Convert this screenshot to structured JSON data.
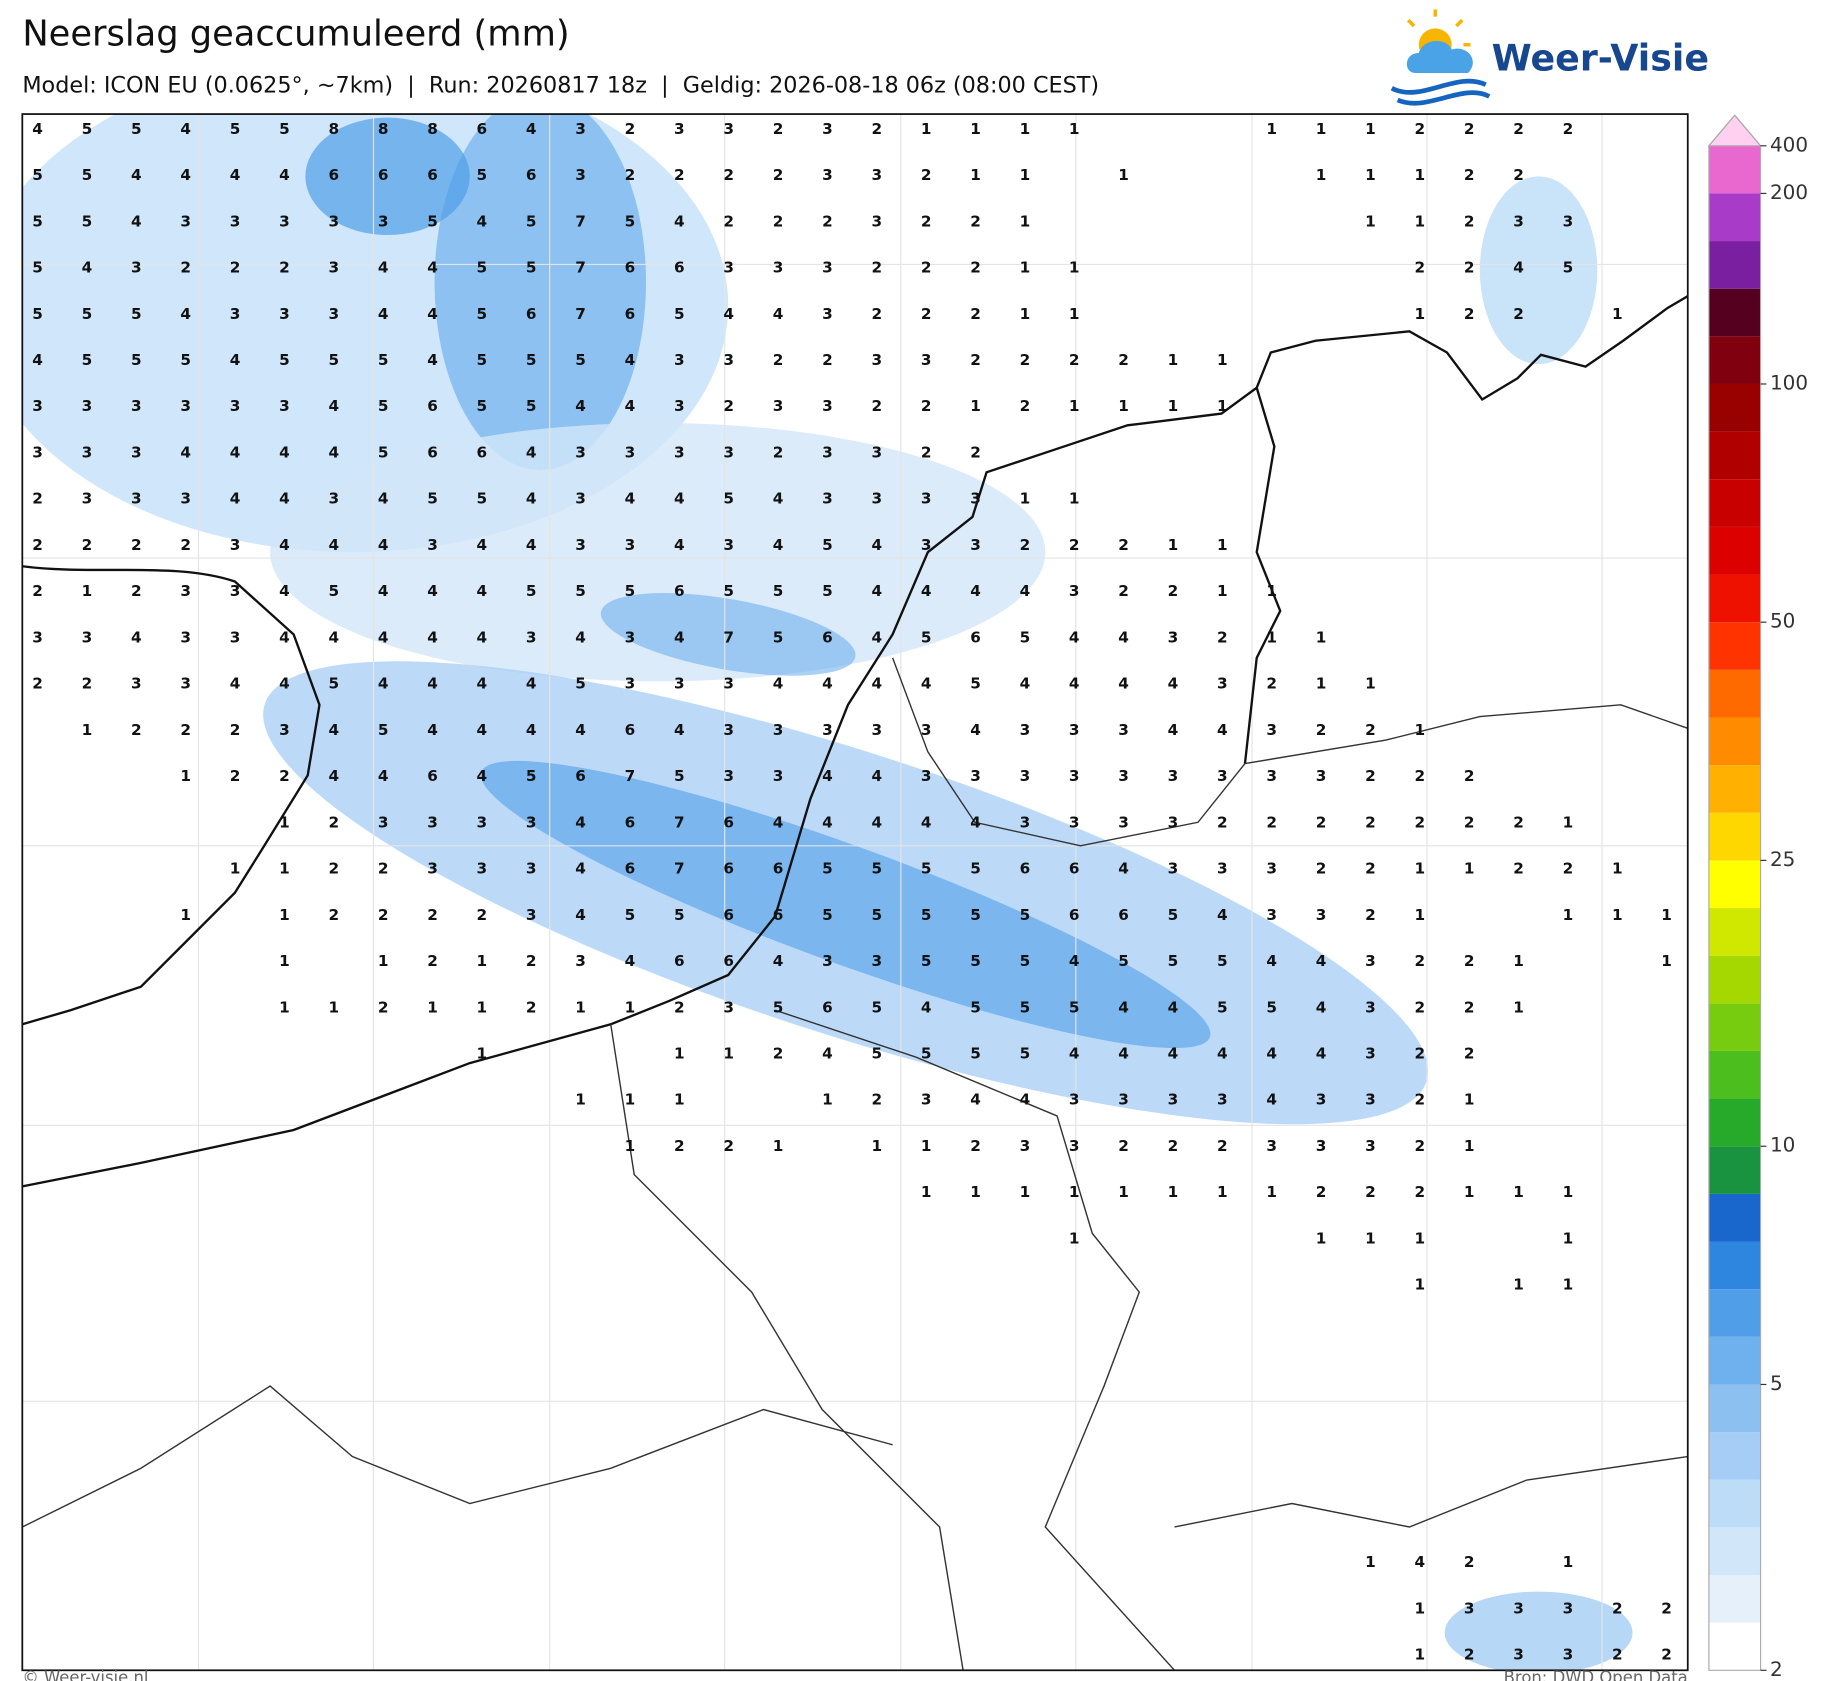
{
  "header": {
    "title": "Neerslag geaccumuleerd (mm)",
    "subtitle": "Model: ICON EU (0.0625°, ~7km)  |  Run: 20260817 18z  |  Geldig: 2026-08-18 06z (08:00 CEST)",
    "logo": "Weer-Visie"
  },
  "grid": {
    "rows": [
      [
        4,
        5,
        5,
        4,
        5,
        5,
        8,
        8,
        8,
        6,
        4,
        3,
        2,
        3,
        3,
        2,
        3,
        2,
        1,
        1,
        1,
        1,
        null,
        null,
        null,
        1,
        1,
        1,
        2,
        2,
        2,
        2,
        null,
        null
      ],
      [
        5,
        5,
        4,
        4,
        4,
        4,
        6,
        6,
        6,
        5,
        6,
        3,
        2,
        2,
        2,
        2,
        3,
        3,
        2,
        1,
        1,
        null,
        1,
        null,
        null,
        null,
        1,
        1,
        1,
        2,
        2,
        null,
        null,
        null
      ],
      [
        5,
        5,
        4,
        3,
        3,
        3,
        3,
        3,
        5,
        4,
        5,
        7,
        5,
        4,
        2,
        2,
        2,
        3,
        2,
        2,
        1,
        null,
        null,
        null,
        null,
        null,
        null,
        1,
        1,
        2,
        3,
        3,
        null,
        null
      ],
      [
        5,
        4,
        3,
        2,
        2,
        2,
        3,
        4,
        4,
        5,
        5,
        7,
        6,
        6,
        3,
        3,
        3,
        2,
        2,
        2,
        1,
        1,
        null,
        null,
        null,
        null,
        null,
        null,
        2,
        2,
        4,
        5,
        null,
        null
      ],
      [
        5,
        5,
        5,
        4,
        3,
        3,
        3,
        4,
        4,
        5,
        6,
        7,
        6,
        5,
        4,
        4,
        3,
        2,
        2,
        2,
        1,
        1,
        null,
        null,
        null,
        null,
        null,
        null,
        1,
        2,
        2,
        null,
        1,
        null
      ],
      [
        4,
        5,
        5,
        5,
        4,
        5,
        5,
        5,
        4,
        5,
        5,
        5,
        4,
        3,
        3,
        2,
        2,
        3,
        3,
        2,
        2,
        2,
        2,
        1,
        1,
        null,
        null,
        null,
        null,
        null,
        null,
        null,
        null,
        null
      ],
      [
        3,
        3,
        3,
        3,
        3,
        3,
        4,
        5,
        6,
        5,
        5,
        4,
        4,
        3,
        2,
        3,
        3,
        2,
        2,
        1,
        2,
        1,
        1,
        1,
        1,
        null,
        null,
        null,
        null,
        null,
        null,
        null,
        null,
        null
      ],
      [
        3,
        3,
        3,
        4,
        4,
        4,
        4,
        5,
        6,
        6,
        4,
        3,
        3,
        3,
        3,
        2,
        3,
        3,
        2,
        2,
        null,
        null,
        null,
        null,
        null,
        null,
        null,
        null,
        null,
        null,
        null,
        null,
        null,
        null
      ],
      [
        2,
        3,
        3,
        3,
        4,
        4,
        3,
        4,
        5,
        5,
        4,
        3,
        4,
        4,
        5,
        4,
        3,
        3,
        3,
        3,
        1,
        1,
        null,
        null,
        null,
        null,
        null,
        null,
        null,
        null,
        null,
        null,
        null,
        null
      ],
      [
        2,
        2,
        2,
        2,
        3,
        4,
        4,
        4,
        3,
        4,
        4,
        3,
        3,
        4,
        3,
        4,
        5,
        4,
        3,
        3,
        2,
        2,
        2,
        1,
        1,
        null,
        null,
        null,
        null,
        null,
        null,
        null,
        null,
        null
      ],
      [
        2,
        1,
        2,
        3,
        3,
        4,
        5,
        4,
        4,
        4,
        5,
        5,
        5,
        6,
        5,
        5,
        5,
        4,
        4,
        4,
        4,
        3,
        2,
        2,
        1,
        1,
        null,
        null,
        null,
        null,
        null,
        null,
        null,
        null
      ],
      [
        3,
        3,
        4,
        3,
        3,
        4,
        4,
        4,
        4,
        4,
        3,
        4,
        3,
        4,
        7,
        5,
        6,
        4,
        5,
        6,
        5,
        4,
        4,
        3,
        2,
        1,
        1,
        null,
        null,
        null,
        null,
        null,
        null,
        null
      ],
      [
        2,
        2,
        3,
        3,
        4,
        4,
        5,
        4,
        4,
        4,
        4,
        5,
        3,
        3,
        3,
        4,
        4,
        4,
        4,
        5,
        4,
        4,
        4,
        4,
        3,
        2,
        1,
        1,
        null,
        null,
        null,
        null,
        null,
        null
      ],
      [
        null,
        1,
        2,
        2,
        2,
        3,
        4,
        5,
        4,
        4,
        4,
        4,
        6,
        4,
        3,
        3,
        3,
        3,
        3,
        4,
        3,
        3,
        3,
        4,
        4,
        3,
        2,
        2,
        1,
        null,
        null,
        null,
        null,
        null
      ],
      [
        null,
        null,
        null,
        1,
        2,
        2,
        4,
        4,
        6,
        4,
        5,
        6,
        7,
        5,
        3,
        3,
        4,
        4,
        3,
        3,
        3,
        3,
        3,
        3,
        3,
        3,
        3,
        2,
        2,
        2,
        null,
        null,
        null,
        null
      ],
      [
        null,
        null,
        null,
        null,
        null,
        1,
        2,
        3,
        3,
        3,
        3,
        4,
        6,
        7,
        6,
        4,
        4,
        4,
        4,
        4,
        3,
        3,
        3,
        3,
        2,
        2,
        2,
        2,
        2,
        2,
        2,
        1,
        null,
        null
      ],
      [
        null,
        null,
        null,
        null,
        1,
        1,
        2,
        2,
        3,
        3,
        3,
        4,
        6,
        7,
        6,
        6,
        5,
        5,
        5,
        5,
        6,
        6,
        4,
        3,
        3,
        3,
        2,
        2,
        1,
        1,
        2,
        2,
        1,
        null
      ],
      [
        null,
        null,
        null,
        1,
        null,
        1,
        2,
        2,
        2,
        2,
        3,
        4,
        5,
        5,
        6,
        6,
        5,
        5,
        5,
        5,
        5,
        6,
        6,
        5,
        4,
        3,
        3,
        2,
        1,
        null,
        null,
        1,
        1,
        1
      ],
      [
        null,
        null,
        null,
        null,
        null,
        1,
        null,
        1,
        2,
        1,
        2,
        3,
        4,
        6,
        6,
        4,
        3,
        3,
        5,
        5,
        5,
        4,
        5,
        5,
        5,
        4,
        4,
        3,
        2,
        2,
        1,
        null,
        null,
        1
      ],
      [
        null,
        null,
        null,
        null,
        null,
        1,
        1,
        2,
        1,
        1,
        2,
        1,
        1,
        2,
        3,
        5,
        6,
        5,
        4,
        5,
        5,
        5,
        4,
        4,
        5,
        5,
        4,
        3,
        2,
        2,
        1,
        null,
        null,
        null
      ],
      [
        null,
        null,
        null,
        null,
        null,
        null,
        null,
        null,
        null,
        1,
        null,
        null,
        null,
        1,
        1,
        2,
        4,
        5,
        5,
        5,
        5,
        4,
        4,
        4,
        4,
        4,
        4,
        3,
        2,
        2,
        null,
        null,
        null,
        null
      ],
      [
        null,
        null,
        null,
        null,
        null,
        null,
        null,
        null,
        null,
        null,
        null,
        1,
        1,
        1,
        null,
        null,
        1,
        2,
        3,
        4,
        4,
        3,
        3,
        3,
        3,
        4,
        3,
        3,
        2,
        1,
        null,
        null,
        null,
        null
      ],
      [
        null,
        null,
        null,
        null,
        null,
        null,
        null,
        null,
        null,
        null,
        null,
        null,
        1,
        2,
        2,
        1,
        null,
        1,
        1,
        2,
        3,
        3,
        2,
        2,
        2,
        3,
        3,
        3,
        2,
        1,
        null,
        null,
        null,
        null
      ],
      [
        null,
        null,
        null,
        null,
        null,
        null,
        null,
        null,
        null,
        null,
        null,
        null,
        null,
        null,
        null,
        null,
        null,
        null,
        1,
        1,
        1,
        1,
        1,
        1,
        1,
        1,
        2,
        2,
        2,
        1,
        1,
        1,
        null,
        null
      ],
      [
        null,
        null,
        null,
        null,
        null,
        null,
        null,
        null,
        null,
        null,
        null,
        null,
        null,
        null,
        null,
        null,
        null,
        null,
        null,
        null,
        null,
        1,
        null,
        null,
        null,
        null,
        1,
        1,
        1,
        null,
        null,
        1,
        null,
        null
      ],
      [
        null,
        null,
        null,
        null,
        null,
        null,
        null,
        null,
        null,
        null,
        null,
        null,
        null,
        null,
        null,
        null,
        null,
        null,
        null,
        null,
        null,
        null,
        null,
        null,
        null,
        null,
        null,
        null,
        1,
        null,
        1,
        1,
        null,
        null
      ],
      [
        null,
        null,
        null,
        null,
        null,
        null,
        null,
        null,
        null,
        null,
        null,
        null,
        null,
        null,
        null,
        null,
        null,
        null,
        null,
        null,
        null,
        null,
        null,
        null,
        null,
        null,
        null,
        null,
        null,
        null,
        null,
        null,
        null,
        null
      ],
      [
        null,
        null,
        null,
        null,
        null,
        null,
        null,
        null,
        null,
        null,
        null,
        null,
        null,
        null,
        null,
        null,
        null,
        null,
        null,
        null,
        null,
        null,
        null,
        null,
        null,
        null,
        null,
        null,
        null,
        null,
        null,
        null,
        null,
        null
      ],
      [
        null,
        null,
        null,
        null,
        null,
        null,
        null,
        null,
        null,
        null,
        null,
        null,
        null,
        null,
        null,
        null,
        null,
        null,
        null,
        null,
        null,
        null,
        null,
        null,
        null,
        null,
        null,
        null,
        null,
        null,
        null,
        null,
        null,
        null
      ],
      [
        null,
        null,
        null,
        null,
        null,
        null,
        null,
        null,
        null,
        null,
        null,
        null,
        null,
        null,
        null,
        null,
        null,
        null,
        null,
        null,
        null,
        null,
        null,
        null,
        null,
        null,
        null,
        null,
        null,
        null,
        null,
        null,
        null,
        null
      ],
      [
        null,
        null,
        null,
        null,
        null,
        null,
        null,
        null,
        null,
        null,
        null,
        null,
        null,
        null,
        null,
        null,
        null,
        null,
        null,
        null,
        null,
        null,
        null,
        null,
        null,
        null,
        null,
        null,
        null,
        null,
        null,
        null,
        null,
        null
      ],
      [
        null,
        null,
        null,
        null,
        null,
        null,
        null,
        null,
        null,
        null,
        null,
        null,
        null,
        null,
        null,
        null,
        null,
        null,
        null,
        null,
        null,
        null,
        null,
        null,
        null,
        null,
        null,
        1,
        4,
        2,
        null,
        1,
        null,
        null
      ],
      [
        null,
        null,
        null,
        null,
        null,
        null,
        null,
        null,
        null,
        null,
        null,
        null,
        null,
        null,
        null,
        null,
        null,
        null,
        null,
        null,
        null,
        null,
        null,
        null,
        null,
        null,
        null,
        null,
        1,
        3,
        3,
        3,
        2,
        2
      ],
      [
        null,
        null,
        null,
        null,
        null,
        null,
        null,
        null,
        null,
        null,
        null,
        null,
        null,
        null,
        null,
        null,
        null,
        null,
        null,
        null,
        null,
        null,
        null,
        null,
        null,
        null,
        null,
        null,
        1,
        2,
        3,
        3,
        2,
        2
      ]
    ]
  },
  "colorbar": {
    "levels": [
      2,
      2.5,
      3,
      3.5,
      4,
      4.5,
      5,
      6,
      7,
      8,
      9,
      10,
      12.5,
      15,
      17.5,
      20,
      22.5,
      25,
      30,
      35,
      40,
      45,
      50,
      60,
      70,
      80,
      90,
      100,
      125,
      150,
      175,
      200,
      400
    ],
    "colors": [
      "#ffffff",
      "#e6f0fb",
      "#d2e6f9",
      "#bcdcf8",
      "#a5cdf5",
      "#8cc0f0",
      "#6fb0ee",
      "#509ee8",
      "#2f86de",
      "#1966cc",
      "#1a9340",
      "#27a92a",
      "#4cbf1f",
      "#78cc10",
      "#a5d800",
      "#d0e800",
      "#ffff00",
      "#ffd700",
      "#ffb000",
      "#ff8c00",
      "#ff6a00",
      "#ff3300",
      "#ee1100",
      "#dd0000",
      "#c80000",
      "#b00000",
      "#990000",
      "#800010",
      "#55001e",
      "#7a1fa0",
      "#a83cc8",
      "#e868d0",
      "#ffd0f0"
    ],
    "ticks": [
      2,
      5,
      10,
      25,
      50,
      100,
      200,
      400
    ]
  },
  "footer": {
    "left": "© Weer-visie.nl",
    "right": "Bron: DWD Open Data"
  }
}
